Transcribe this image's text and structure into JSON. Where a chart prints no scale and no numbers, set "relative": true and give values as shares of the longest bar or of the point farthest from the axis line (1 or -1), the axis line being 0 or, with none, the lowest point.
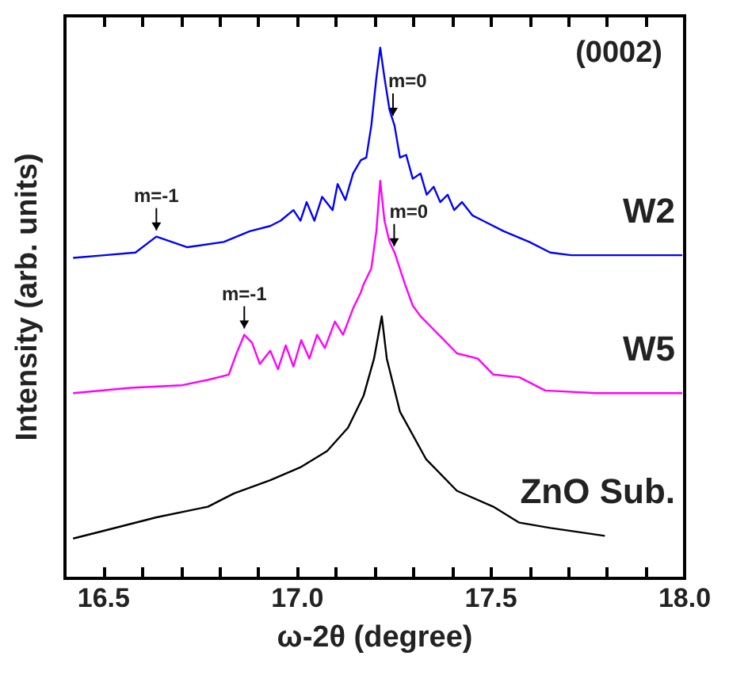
{
  "chart_data": {
    "type": "line",
    "relative": true,
    "xlabel": "ω-2θ (degree)",
    "ylabel": "Intensity (arb. units)",
    "xlim": [
      16.4,
      18.0
    ],
    "xticks": [
      {
        "value": 16.4,
        "label": null
      },
      {
        "value": 16.5,
        "label": "16.5"
      },
      {
        "value": 16.6,
        "label": null
      },
      {
        "value": 16.7,
        "label": null
      },
      {
        "value": 16.8,
        "label": null
      },
      {
        "value": 16.9,
        "label": null
      },
      {
        "value": 17,
        "label": "17.0"
      },
      {
        "value": 17.1,
        "label": null
      },
      {
        "value": 17.2,
        "label": null
      },
      {
        "value": 17.3,
        "label": null
      },
      {
        "value": 17.4,
        "label": null
      },
      {
        "value": 17.5,
        "label": "17.5"
      },
      {
        "value": 17.6,
        "label": null
      },
      {
        "value": 17.7,
        "label": null
      },
      {
        "value": 17.8,
        "label": null
      },
      {
        "value": 17.9,
        "label": null
      },
      {
        "value": 18,
        "label": "18.0"
      }
    ],
    "grid": false,
    "legend": false,
    "marker": "none",
    "line_style": "solid",
    "series": [
      {
        "name": "W2",
        "color": "#0000ff",
        "x": [
          16.421,
          16.502,
          16.582,
          16.636,
          16.716,
          16.81,
          16.877,
          16.93,
          16.957,
          16.99,
          17.008,
          17.024,
          17.044,
          17.064,
          17.091,
          17.104,
          17.124,
          17.144,
          17.164,
          17.178,
          17.191,
          17.204,
          17.214,
          17.225,
          17.238,
          17.251,
          17.265,
          17.281,
          17.298,
          17.318,
          17.334,
          17.352,
          17.369,
          17.388,
          17.405,
          17.425,
          17.452,
          17.479,
          17.533,
          17.599,
          17.653,
          17.707,
          17.84,
          17.994
        ],
        "values": [
          0.604,
          0.609,
          0.614,
          0.644,
          0.624,
          0.634,
          0.654,
          0.664,
          0.674,
          0.694,
          0.674,
          0.709,
          0.674,
          0.719,
          0.694,
          0.743,
          0.713,
          0.763,
          0.788,
          0.793,
          0.853,
          0.943,
          1.0,
          0.943,
          0.883,
          0.853,
          0.793,
          0.798,
          0.753,
          0.763,
          0.723,
          0.738,
          0.709,
          0.723,
          0.694,
          0.709,
          0.684,
          0.674,
          0.654,
          0.634,
          0.614,
          0.609,
          0.609,
          0.609
        ]
      },
      {
        "name": "W5",
        "color": "#ff00ff",
        "x": [
          16.421,
          16.569,
          16.703,
          16.769,
          16.823,
          16.843,
          16.863,
          16.883,
          16.903,
          16.93,
          16.95,
          16.97,
          16.99,
          17.01,
          17.031,
          17.051,
          17.071,
          17.097,
          17.118,
          17.144,
          17.164,
          17.171,
          17.191,
          17.204,
          17.214,
          17.225,
          17.238,
          17.251,
          17.278,
          17.298,
          17.318,
          17.345,
          17.372,
          17.412,
          17.466,
          17.506,
          17.573,
          17.64,
          17.773,
          17.994
        ],
        "values": [
          0.349,
          0.359,
          0.364,
          0.374,
          0.384,
          0.424,
          0.459,
          0.444,
          0.404,
          0.429,
          0.394,
          0.439,
          0.399,
          0.449,
          0.414,
          0.459,
          0.434,
          0.484,
          0.459,
          0.509,
          0.539,
          0.554,
          0.584,
          0.654,
          0.749,
          0.674,
          0.634,
          0.614,
          0.554,
          0.514,
          0.494,
          0.474,
          0.454,
          0.424,
          0.414,
          0.384,
          0.379,
          0.354,
          0.349,
          0.349
        ]
      },
      {
        "name": "ZnO Sub.",
        "color": "#000000",
        "x": [
          16.421,
          16.502,
          16.636,
          16.769,
          16.836,
          16.93,
          17.01,
          17.077,
          17.131,
          17.171,
          17.198,
          17.218,
          17.231,
          17.265,
          17.332,
          17.412,
          17.506,
          17.573,
          17.653,
          17.794
        ],
        "values": [
          0.075,
          0.09,
          0.115,
          0.135,
          0.16,
          0.185,
          0.21,
          0.24,
          0.284,
          0.344,
          0.414,
          0.494,
          0.414,
          0.314,
          0.225,
          0.165,
          0.135,
          0.105,
          0.095,
          0.08
        ]
      }
    ],
    "annotations": [
      "(0002)",
      {
        "text": "m=-1",
        "x": 16.636,
        "y": 0.644
      },
      {
        "text": "m=0",
        "x": 17.247,
        "y": 0.86
      },
      {
        "text": "m=-1",
        "x": 16.863,
        "y": 0.459
      },
      {
        "text": "m=0",
        "x": 17.25,
        "y": 0.614
      }
    ]
  }
}
